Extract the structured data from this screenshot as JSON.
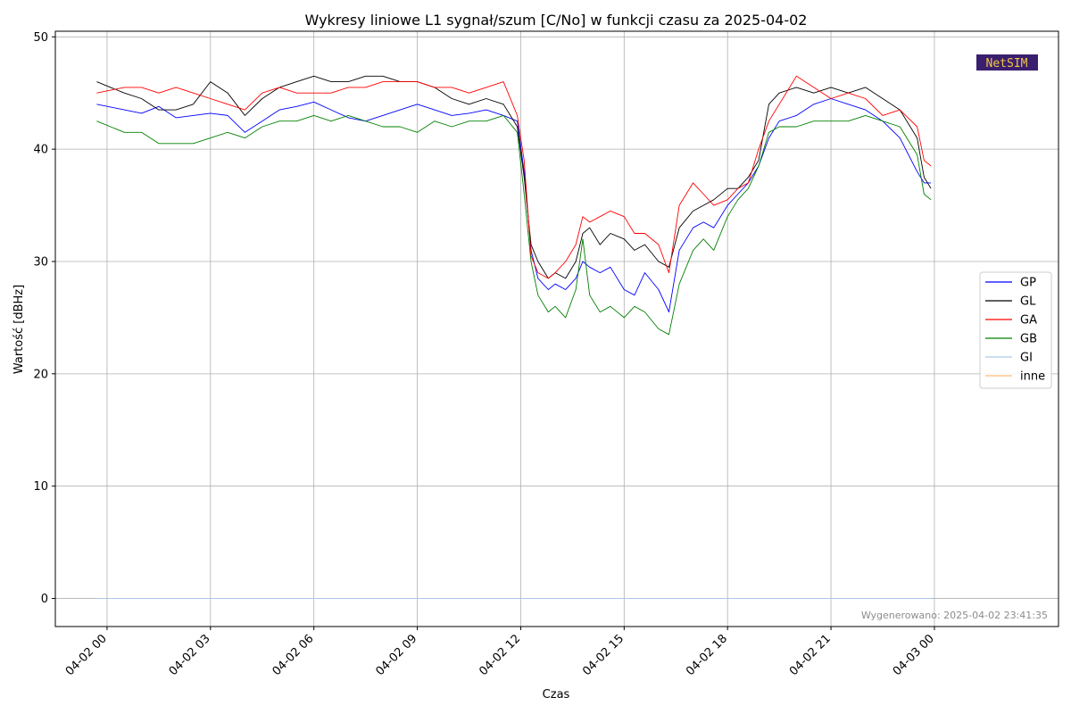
{
  "chart_data": {
    "type": "line",
    "title": "Wykresy liniowe L1 sygnał/szum [C/No] w funkcji czasu za 2025-04-02",
    "xlabel": "Czas",
    "ylabel": "Wartość [dBHz]",
    "ylim": [
      -2.5,
      50.5
    ],
    "xlim_hours": [
      -1.5,
      27.6
    ],
    "yticks": [
      0,
      10,
      20,
      30,
      40,
      50
    ],
    "xticks": [
      {
        "hour": 0,
        "label": "04-02 00"
      },
      {
        "hour": 3,
        "label": "04-02 03"
      },
      {
        "hour": 6,
        "label": "04-02 06"
      },
      {
        "hour": 9,
        "label": "04-02 09"
      },
      {
        "hour": 12,
        "label": "04-02 12"
      },
      {
        "hour": 15,
        "label": "04-02 15"
      },
      {
        "hour": 18,
        "label": "04-02 18"
      },
      {
        "hour": 21,
        "label": "04-02 21"
      },
      {
        "hour": 24,
        "label": "04-03 00"
      }
    ],
    "grid": true,
    "legend_position": "center-right",
    "x_hours": [
      -0.3,
      0.5,
      1.0,
      1.5,
      2.0,
      2.5,
      3.0,
      3.5,
      4.0,
      4.5,
      5.0,
      5.5,
      6.0,
      6.5,
      7.0,
      7.5,
      8.0,
      8.5,
      9.0,
      9.5,
      10.0,
      10.5,
      11.0,
      11.5,
      11.9,
      12.1,
      12.3,
      12.5,
      12.8,
      13.0,
      13.3,
      13.6,
      13.8,
      14.0,
      14.3,
      14.6,
      15.0,
      15.3,
      15.6,
      16.0,
      16.3,
      16.6,
      17.0,
      17.3,
      17.6,
      18.0,
      18.3,
      18.6,
      18.9,
      19.2,
      19.5,
      20.0,
      20.5,
      21.0,
      21.5,
      22.0,
      22.5,
      23.0,
      23.5,
      23.7,
      23.9
    ],
    "series": [
      {
        "name": "GP",
        "color": "#0000ff",
        "values": [
          44.0,
          43.5,
          43.2,
          43.8,
          42.8,
          43.0,
          43.2,
          43.0,
          41.5,
          42.5,
          43.5,
          43.8,
          44.2,
          43.5,
          42.8,
          42.5,
          43.0,
          43.5,
          44.0,
          43.5,
          43.0,
          43.2,
          43.5,
          43.0,
          42.5,
          38.0,
          31.0,
          28.5,
          27.5,
          28.0,
          27.5,
          28.5,
          30.0,
          29.5,
          29.0,
          29.5,
          27.5,
          27.0,
          29.0,
          27.5,
          25.5,
          31.0,
          33.0,
          33.5,
          33.0,
          35.0,
          36.0,
          37.0,
          38.5,
          41.0,
          42.5,
          43.0,
          44.0,
          44.5,
          44.0,
          43.5,
          42.5,
          41.0,
          38.0,
          37.0,
          37.0
        ]
      },
      {
        "name": "GL",
        "color": "#000000",
        "values": [
          46.0,
          45.0,
          44.5,
          43.5,
          43.5,
          44.0,
          46.0,
          45.0,
          43.0,
          44.5,
          45.5,
          46.0,
          46.5,
          46.0,
          46.0,
          46.5,
          46.5,
          46.0,
          46.0,
          45.5,
          44.5,
          44.0,
          44.5,
          44.0,
          42.0,
          37.5,
          31.5,
          30.0,
          28.5,
          29.0,
          28.5,
          30.0,
          32.5,
          33.0,
          31.5,
          32.5,
          32.0,
          31.0,
          31.5,
          30.0,
          29.5,
          33.0,
          34.5,
          35.0,
          35.5,
          36.5,
          36.5,
          37.5,
          39.0,
          44.0,
          45.0,
          45.5,
          45.0,
          45.5,
          45.0,
          45.5,
          44.5,
          43.5,
          41.0,
          37.5,
          36.5
        ]
      },
      {
        "name": "GA",
        "color": "#ff0000",
        "values": [
          45.0,
          45.5,
          45.5,
          45.0,
          45.5,
          45.0,
          44.5,
          44.0,
          43.5,
          45.0,
          45.5,
          45.0,
          45.0,
          45.0,
          45.5,
          45.5,
          46.0,
          46.0,
          46.0,
          45.5,
          45.5,
          45.0,
          45.5,
          46.0,
          43.0,
          39.0,
          30.5,
          29.0,
          28.5,
          29.0,
          30.0,
          31.5,
          34.0,
          33.5,
          34.0,
          34.5,
          34.0,
          32.5,
          32.5,
          31.5,
          29.0,
          35.0,
          37.0,
          36.0,
          35.0,
          35.5,
          36.5,
          37.0,
          40.0,
          42.5,
          44.0,
          46.5,
          45.5,
          44.5,
          45.0,
          44.5,
          43.0,
          43.5,
          42.0,
          39.0,
          38.5
        ]
      },
      {
        "name": "GB",
        "color": "#008000",
        "values": [
          42.5,
          41.5,
          41.5,
          40.5,
          40.5,
          40.5,
          41.0,
          41.5,
          41.0,
          42.0,
          42.5,
          42.5,
          43.0,
          42.5,
          43.0,
          42.5,
          42.0,
          42.0,
          41.5,
          42.5,
          42.0,
          42.5,
          42.5,
          43.0,
          41.5,
          36.0,
          30.0,
          27.0,
          25.5,
          26.0,
          25.0,
          27.5,
          32.0,
          27.0,
          25.5,
          26.0,
          25.0,
          26.0,
          25.5,
          24.0,
          23.5,
          28.0,
          31.0,
          32.0,
          31.0,
          34.0,
          35.5,
          36.5,
          38.5,
          41.5,
          42.0,
          42.0,
          42.5,
          42.5,
          42.5,
          43.0,
          42.5,
          42.0,
          39.5,
          36.0,
          35.5
        ]
      },
      {
        "name": "GI",
        "color": "#aec7e8",
        "values": [
          0,
          0,
          0,
          0,
          0,
          0,
          0,
          0,
          0,
          0,
          0,
          0,
          0,
          0,
          0,
          0,
          0,
          0,
          0,
          0,
          0,
          0,
          0,
          0,
          0,
          0,
          0,
          0,
          0,
          0,
          0,
          0,
          0,
          0,
          0,
          0,
          0,
          0,
          0,
          0,
          0,
          0,
          0,
          0,
          0,
          0,
          0,
          0,
          0,
          0,
          0,
          0,
          0,
          0,
          0,
          0,
          0,
          0,
          0,
          0,
          0
        ]
      },
      {
        "name": "inne",
        "color": "#ffbb78",
        "values": [
          0,
          0,
          0,
          0,
          0,
          0,
          0,
          0,
          0,
          0,
          0,
          0,
          0,
          0,
          0,
          0,
          0,
          0,
          0,
          0,
          0,
          0,
          0,
          0,
          0,
          0,
          0,
          0,
          0,
          0,
          0,
          0,
          0,
          0,
          0,
          0,
          0,
          0,
          0,
          0,
          0,
          0,
          0,
          0,
          0,
          0,
          0,
          0,
          0,
          0,
          0,
          0,
          0,
          0,
          0,
          0,
          0,
          0,
          0,
          0,
          0
        ]
      }
    ],
    "footnote": "Wygenerowano: 2025-04-02 23:41:35",
    "logo_text": "NetSIM"
  }
}
